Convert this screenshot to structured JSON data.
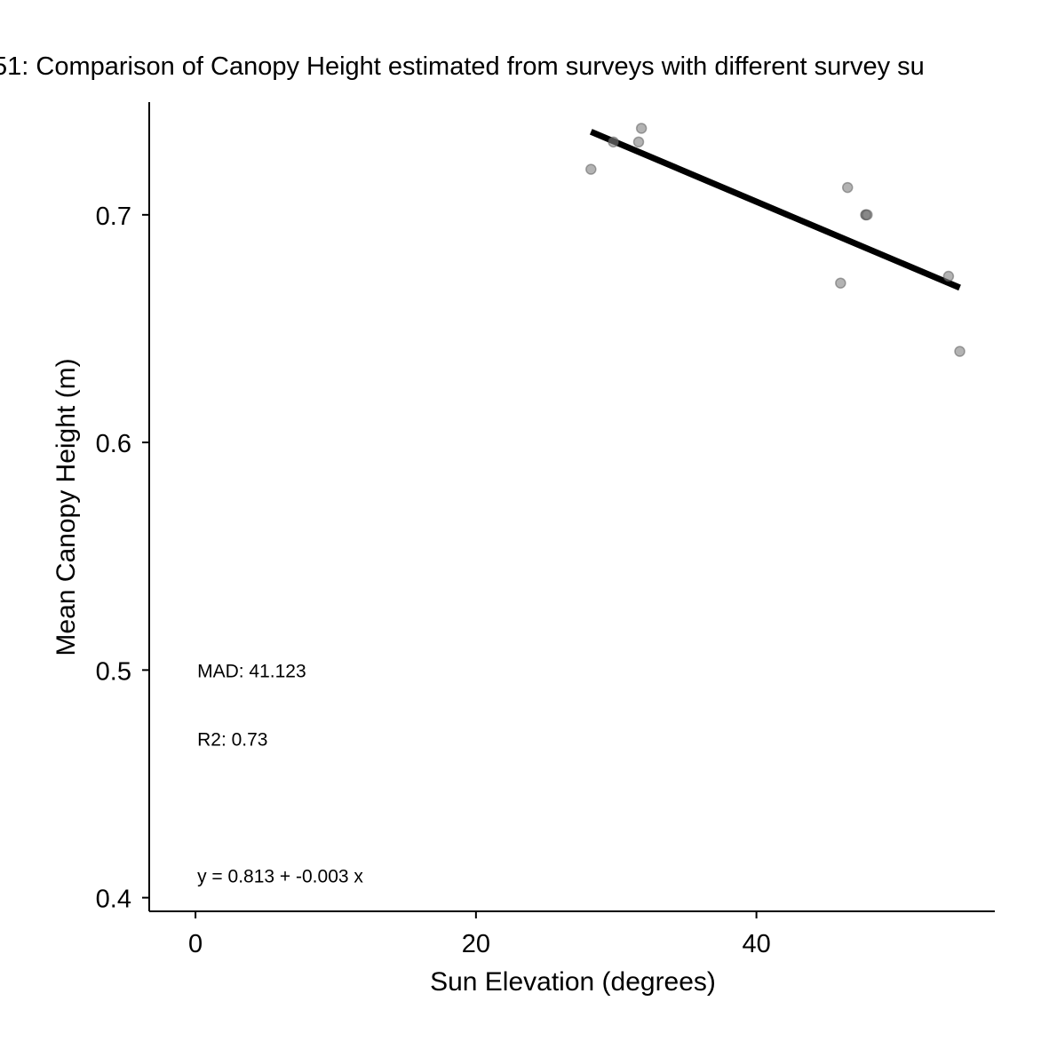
{
  "chart_data": {
    "type": "scatter",
    "title": "51: Comparison of Canopy Height estimated from surveys with different survey su",
    "xlabel": "Sun Elevation (degrees)",
    "ylabel": "Mean Canopy Height (m)",
    "xlim": [
      -3.3,
      57.0
    ],
    "ylim": [
      0.394,
      0.7495
    ],
    "x_ticks": [
      0,
      20,
      40
    ],
    "x_tick_labels": [
      "0",
      "20",
      "40"
    ],
    "y_ticks": [
      0.4,
      0.5,
      0.6,
      0.7
    ],
    "y_tick_labels": [
      "0.4",
      "0.5",
      "0.6",
      "0.7"
    ],
    "grid": false,
    "series": [
      {
        "points": [
          {
            "x": 28.2,
            "y": 0.72
          },
          {
            "x": 29.8,
            "y": 0.732
          },
          {
            "x": 31.6,
            "y": 0.732
          },
          {
            "x": 31.8,
            "y": 0.738
          },
          {
            "x": 46.0,
            "y": 0.67
          },
          {
            "x": 46.5,
            "y": 0.712
          },
          {
            "x": 47.8,
            "y": 0.7
          },
          {
            "x": 47.8,
            "y": 0.7
          },
          {
            "x": 47.9,
            "y": 0.7
          },
          {
            "x": 53.7,
            "y": 0.673
          },
          {
            "x": 54.5,
            "y": 0.64
          }
        ],
        "point_color": "#808080"
      }
    ],
    "fit_line": {
      "x": [
        28.2,
        54.5
      ],
      "y": [
        0.7365,
        0.668
      ],
      "color": "#000000"
    },
    "annotations": [
      {
        "text": "MAD: 41.123",
        "x": 0,
        "y": 0.4995
      },
      {
        "text": "R2: 0.73",
        "x": 0,
        "y": 0.4695
      },
      {
        "text": "y =  0.813 + -0.003 x",
        "x": 0,
        "y": 0.4095
      }
    ]
  }
}
